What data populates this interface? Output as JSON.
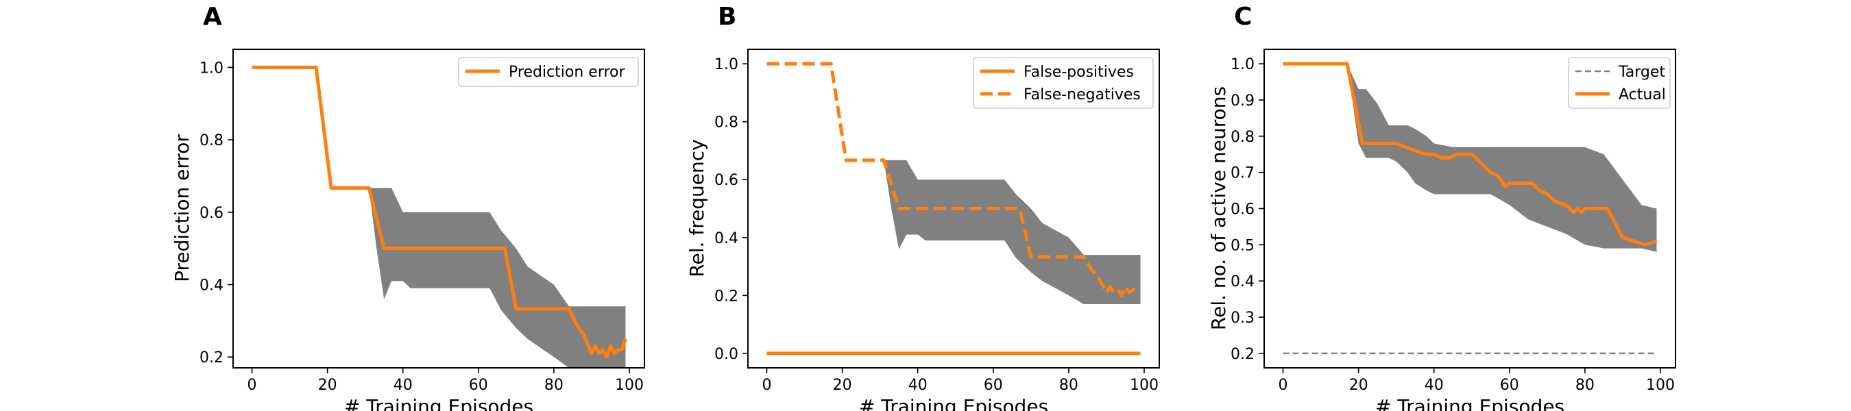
{
  "chart_data": [
    {
      "panel_label": "A",
      "type": "line",
      "xlabel": "# Training Episodes",
      "ylabel": "Prediction error",
      "xlim": [
        -5,
        104
      ],
      "ylim": [
        0.17,
        1.05
      ],
      "xticks": [
        0,
        20,
        40,
        60,
        80,
        100
      ],
      "yticks": [
        0.2,
        0.4,
        0.6,
        0.8,
        1.0
      ],
      "ytick_labels": [
        "0.2",
        "0.4",
        "0.6",
        "0.8",
        "1.0"
      ],
      "legend": "top-right",
      "band": {
        "color": "#808080",
        "x": [
          0,
          17,
          21,
          31,
          33,
          35,
          37,
          40,
          42,
          63,
          66,
          70,
          73,
          80,
          84,
          88,
          95,
          99
        ],
        "upper": [
          1.0,
          1.0,
          0.667,
          0.667,
          0.667,
          0.667,
          0.667,
          0.6,
          0.6,
          0.6,
          0.55,
          0.5,
          0.45,
          0.4,
          0.34,
          0.34,
          0.34,
          0.34
        ],
        "lower": [
          1.0,
          1.0,
          0.667,
          0.667,
          0.5,
          0.36,
          0.41,
          0.41,
          0.39,
          0.39,
          0.33,
          0.28,
          0.25,
          0.2,
          0.17,
          0.17,
          0.17,
          0.17
        ]
      },
      "series": [
        {
          "name": "Prediction error",
          "color": "#ff7f0e",
          "style": "solid",
          "x": [
            0,
            17,
            21,
            31,
            35,
            67,
            70,
            84,
            86,
            88,
            90,
            91,
            92,
            93,
            94,
            95,
            96,
            97,
            98,
            99
          ],
          "y": [
            1.0,
            1.0,
            0.667,
            0.667,
            0.5,
            0.5,
            0.333,
            0.333,
            0.29,
            0.26,
            0.21,
            0.23,
            0.21,
            0.22,
            0.2,
            0.23,
            0.21,
            0.22,
            0.22,
            0.25
          ]
        }
      ]
    },
    {
      "panel_label": "B",
      "type": "line",
      "xlabel": "# Training Episodes",
      "ylabel": "Rel. frequency",
      "xlim": [
        -5,
        104
      ],
      "ylim": [
        -0.05,
        1.05
      ],
      "xticks": [
        0,
        20,
        40,
        60,
        80,
        100
      ],
      "yticks": [
        0.0,
        0.2,
        0.4,
        0.6,
        0.8,
        1.0
      ],
      "ytick_labels": [
        "0.0",
        "0.2",
        "0.4",
        "0.6",
        "0.8",
        "1.0"
      ],
      "legend": "top-right",
      "band": {
        "color": "#808080",
        "x": [
          31,
          33,
          35,
          37,
          40,
          42,
          63,
          66,
          70,
          73,
          80,
          84,
          88,
          95,
          99
        ],
        "upper": [
          0.667,
          0.667,
          0.667,
          0.667,
          0.6,
          0.6,
          0.6,
          0.55,
          0.5,
          0.45,
          0.4,
          0.34,
          0.34,
          0.34,
          0.34
        ],
        "lower": [
          0.667,
          0.5,
          0.36,
          0.41,
          0.41,
          0.39,
          0.39,
          0.33,
          0.28,
          0.25,
          0.2,
          0.17,
          0.17,
          0.17,
          0.17
        ]
      },
      "series": [
        {
          "name": "False-positives",
          "color": "#ff7f0e",
          "style": "solid",
          "x": [
            0,
            99
          ],
          "y": [
            0.0,
            0.0
          ]
        },
        {
          "name": "False-negatives",
          "color": "#ff7f0e",
          "style": "dashed",
          "x": [
            0,
            17,
            21,
            31,
            35,
            67,
            70,
            84,
            86,
            88,
            90,
            91,
            92,
            93,
            94,
            95,
            96,
            97,
            98,
            99
          ],
          "y": [
            1.0,
            1.0,
            0.667,
            0.667,
            0.5,
            0.5,
            0.333,
            0.333,
            0.29,
            0.26,
            0.21,
            0.23,
            0.21,
            0.22,
            0.2,
            0.23,
            0.21,
            0.22,
            0.22,
            0.22
          ]
        }
      ]
    },
    {
      "panel_label": "C",
      "type": "line",
      "xlabel": "# Training Episodes",
      "ylabel": "Rel. no. of active neurons",
      "xlim": [
        -5,
        104
      ],
      "ylim": [
        0.16,
        1.04
      ],
      "xticks": [
        0,
        20,
        40,
        60,
        80,
        100
      ],
      "yticks": [
        0.2,
        0.3,
        0.4,
        0.5,
        0.6,
        0.7,
        0.8,
        0.9,
        1.0
      ],
      "ytick_labels": [
        "0.2",
        "0.3",
        "0.4",
        "0.5",
        "0.6",
        "0.7",
        "0.8",
        "0.9",
        "1.0"
      ],
      "legend": "top-right",
      "band": {
        "color": "#808080",
        "x": [
          0,
          17,
          20,
          22,
          25,
          28,
          30,
          33,
          35,
          38,
          40,
          45,
          50,
          55,
          60,
          65,
          70,
          75,
          80,
          85,
          90,
          95,
          99
        ],
        "upper": [
          1.0,
          1.0,
          0.93,
          0.93,
          0.89,
          0.83,
          0.83,
          0.83,
          0.82,
          0.8,
          0.78,
          0.77,
          0.77,
          0.77,
          0.77,
          0.77,
          0.77,
          0.77,
          0.77,
          0.75,
          0.68,
          0.61,
          0.6
        ],
        "lower": [
          1.0,
          1.0,
          0.78,
          0.74,
          0.74,
          0.74,
          0.73,
          0.7,
          0.67,
          0.65,
          0.64,
          0.64,
          0.64,
          0.64,
          0.61,
          0.57,
          0.55,
          0.53,
          0.5,
          0.49,
          0.49,
          0.49,
          0.48
        ]
      },
      "series": [
        {
          "name": "Target",
          "color": "#808080",
          "style": "dashed-thin",
          "x": [
            0,
            99
          ],
          "y": [
            0.2,
            0.2
          ]
        },
        {
          "name": "Actual",
          "color": "#ff7f0e",
          "style": "solid",
          "x": [
            0,
            17,
            21,
            30,
            35,
            38,
            40,
            42,
            44,
            46,
            50,
            53,
            55,
            57,
            59,
            60,
            63,
            66,
            68,
            70,
            72,
            75,
            77,
            78,
            79,
            80,
            81,
            83,
            86,
            88,
            90,
            93,
            96,
            99
          ],
          "y": [
            1.0,
            1.0,
            0.78,
            0.78,
            0.76,
            0.75,
            0.75,
            0.74,
            0.74,
            0.75,
            0.75,
            0.72,
            0.7,
            0.69,
            0.66,
            0.67,
            0.67,
            0.67,
            0.65,
            0.64,
            0.62,
            0.61,
            0.59,
            0.6,
            0.59,
            0.6,
            0.6,
            0.6,
            0.6,
            0.56,
            0.52,
            0.51,
            0.5,
            0.51
          ]
        }
      ]
    }
  ]
}
